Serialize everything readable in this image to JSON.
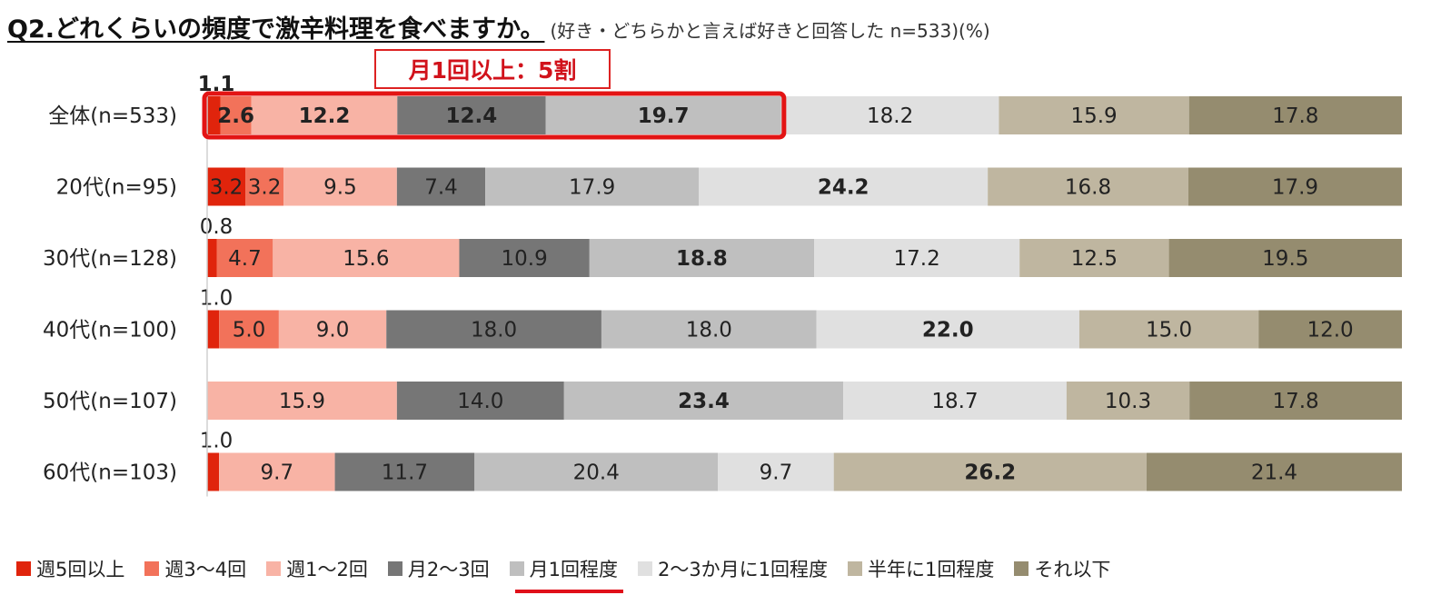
{
  "title": "Q2.どれくらいの頻度で激辛料理を食べますか。",
  "subtitle": "(好き・どちらかと言えば好きと回答した n=533)(%)",
  "callout": "月1回以上：5割",
  "colors": {
    "highlight_box": "#e31414",
    "callout": "#d1121b"
  },
  "chart_data": {
    "type": "bar",
    "orientation": "horizontal",
    "stacked": true,
    "categories": [
      "全体(n=533)",
      "20代(n=95)",
      "30代(n=128)",
      "40代(n=100)",
      "50代(n=107)",
      "60代(n=103)"
    ],
    "series": [
      {
        "name": "週5回以上",
        "color": "#e0240c",
        "values": [
          1.1,
          3.2,
          0.8,
          1.0,
          0.0,
          1.0
        ]
      },
      {
        "name": "週3〜4回",
        "color": "#f2725a",
        "values": [
          2.6,
          3.2,
          4.7,
          5.0,
          0.0,
          0.0
        ]
      },
      {
        "name": "週1〜2回",
        "color": "#f8b3a5",
        "values": [
          12.2,
          9.5,
          15.6,
          9.0,
          15.9,
          9.7
        ]
      },
      {
        "name": "月2〜3回",
        "color": "#767676",
        "values": [
          12.4,
          7.4,
          10.9,
          18.0,
          14.0,
          11.7
        ]
      },
      {
        "name": "月1回程度",
        "color": "#bfbfbf",
        "values": [
          19.7,
          17.9,
          18.8,
          18.0,
          23.4,
          20.4
        ]
      },
      {
        "name": "2〜3か月に1回程度",
        "color": "#e0e0e0",
        "values": [
          18.2,
          24.2,
          17.2,
          22.0,
          18.7,
          9.7
        ]
      },
      {
        "name": "半年に1回程度",
        "color": "#bfb6a0",
        "values": [
          15.9,
          16.8,
          12.5,
          15.0,
          10.3,
          26.2
        ]
      },
      {
        "name": "それ以下",
        "color": "#958c6f",
        "values": [
          17.8,
          17.9,
          19.5,
          12.0,
          17.8,
          21.4
        ]
      }
    ],
    "labels": [
      [
        "1.1",
        "2.6",
        "12.2",
        "12.4",
        "19.7",
        "18.2",
        "15.9",
        "17.8"
      ],
      [
        "3.2",
        "3.2",
        "9.5",
        "7.4",
        "17.9",
        "24.2",
        "16.8",
        "17.9"
      ],
      [
        "0.8",
        "4.7",
        "15.6",
        "10.9",
        "18.8",
        "17.2",
        "12.5",
        "19.5"
      ],
      [
        "1.0",
        "5.0",
        "9.0",
        "18.0",
        "18.0",
        "22.0",
        "15.0",
        "12.0"
      ],
      [
        "",
        "",
        "15.9",
        "14.0",
        "23.4",
        "18.7",
        "10.3",
        "17.8"
      ],
      [
        "1.0",
        "",
        "9.7",
        "11.7",
        "20.4",
        "9.7",
        "26.2",
        "21.4"
      ]
    ],
    "bold_labels": [
      [
        true,
        true,
        true,
        true,
        true,
        false,
        false,
        false
      ],
      [
        false,
        false,
        false,
        false,
        false,
        true,
        false,
        false
      ],
      [
        false,
        false,
        false,
        false,
        true,
        false,
        false,
        false
      ],
      [
        false,
        false,
        false,
        false,
        false,
        true,
        false,
        false
      ],
      [
        false,
        false,
        false,
        false,
        true,
        false,
        false,
        false
      ],
      [
        false,
        false,
        false,
        false,
        false,
        false,
        true,
        false
      ]
    ],
    "xlim": [
      0,
      100
    ],
    "unit": "%",
    "highlight": {
      "row": 0,
      "series_from": 0,
      "series_to": 4
    },
    "legend_highlight": "月1回程度",
    "legend": "bottom",
    "grid": false
  }
}
